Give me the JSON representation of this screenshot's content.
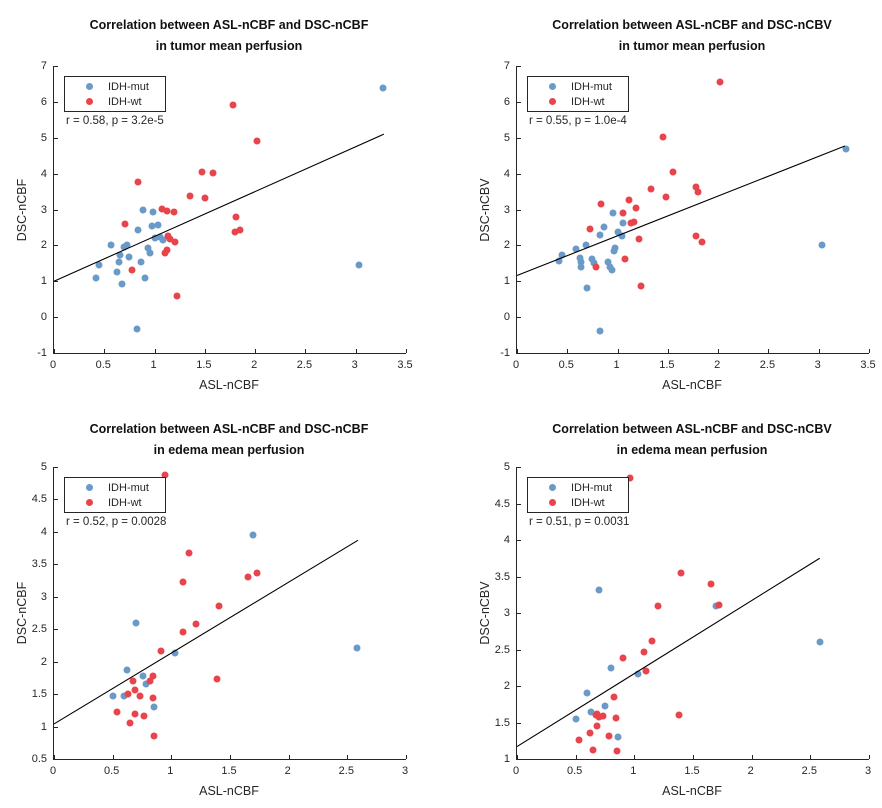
{
  "figure": {
    "background": "#ffffff",
    "layout": "2x2 scatter plot grid"
  },
  "colors": {
    "idh_mut": "#6A9AC8",
    "idh_wt": "#E8444C",
    "axis": "#262626",
    "fit_line": "#000000"
  },
  "chart_data": [
    {
      "type": "scatter",
      "title_line1": "Correlation between ASL-nCBF and DSC-nCBF",
      "title_line2": "in tumor mean perfusion",
      "xlabel": "ASL-nCBF",
      "ylabel": "DSC-nCBF",
      "xlim": [
        0,
        3.5
      ],
      "ylim": [
        -1,
        7
      ],
      "xticks": [
        0,
        0.5,
        1,
        1.5,
        2,
        2.5,
        3,
        3.5
      ],
      "xtick_labels": [
        "0",
        "0.5",
        "1",
        "1.5",
        "2",
        "2.5",
        "3",
        "3.5"
      ],
      "yticks": [
        -1,
        0,
        1,
        2,
        3,
        4,
        5,
        6,
        7
      ],
      "ytick_labels": [
        "-1",
        "0",
        "1",
        "2",
        "3",
        "4",
        "5",
        "6",
        "7"
      ],
      "grid": false,
      "legend_position": "top-left",
      "stats": "r = 0.58, p = 3.2e-5",
      "series": [
        {
          "name": "IDH-mut",
          "color": "#6A9AC8",
          "points": [
            [
              0.42,
              1.1
            ],
            [
              0.45,
              1.45
            ],
            [
              0.57,
              2.0
            ],
            [
              0.63,
              1.25
            ],
            [
              0.65,
              1.55
            ],
            [
              0.66,
              1.72
            ],
            [
              0.68,
              0.92
            ],
            [
              0.7,
              1.95
            ],
            [
              0.73,
              2.02
            ],
            [
              0.75,
              1.68
            ],
            [
              0.84,
              2.43
            ],
            [
              0.83,
              -0.33
            ],
            [
              0.88,
              3.0
            ],
            [
              0.87,
              1.55
            ],
            [
              0.9,
              1.1
            ],
            [
              0.98,
              2.94
            ],
            [
              0.93,
              1.93
            ],
            [
              0.95,
              1.78
            ],
            [
              0.97,
              2.55
            ],
            [
              1.0,
              2.2
            ],
            [
              1.03,
              2.57
            ],
            [
              1.05,
              2.23
            ],
            [
              1.08,
              2.15
            ],
            [
              3.03,
              1.45
            ],
            [
              3.27,
              6.4
            ]
          ]
        },
        {
          "name": "IDH-wt",
          "color": "#E8444C",
          "points": [
            [
              0.71,
              2.6
            ],
            [
              0.78,
              1.3
            ],
            [
              0.84,
              3.76
            ],
            [
              1.07,
              3.02
            ],
            [
              1.12,
              2.95
            ],
            [
              1.1,
              1.8
            ],
            [
              1.12,
              1.88
            ],
            [
              1.13,
              2.25
            ],
            [
              1.15,
              2.18
            ],
            [
              1.19,
              2.92
            ],
            [
              1.2,
              2.1
            ],
            [
              1.22,
              0.6
            ],
            [
              1.35,
              3.39
            ],
            [
              1.47,
              4.04
            ],
            [
              1.5,
              3.31
            ],
            [
              1.58,
              4.01
            ],
            [
              1.78,
              5.9
            ],
            [
              1.8,
              2.38
            ],
            [
              1.81,
              2.79
            ],
            [
              1.85,
              2.43
            ],
            [
              2.02,
              4.92
            ]
          ]
        }
      ],
      "fit_line": {
        "x": [
          0,
          3.28
        ],
        "y": [
          1.0,
          5.1
        ]
      }
    },
    {
      "type": "scatter",
      "title_line1": "Correlation between ASL-nCBF and DSC-nCBV",
      "title_line2": "in tumor mean perfusion",
      "xlabel": "ASL-nCBF",
      "ylabel": "DSC-nCBV",
      "xlim": [
        0,
        3.5
      ],
      "ylim": [
        -1,
        7
      ],
      "xticks": [
        0,
        0.5,
        1,
        1.5,
        2,
        2.5,
        3,
        3.5
      ],
      "xtick_labels": [
        "0",
        "0.5",
        "1",
        "1.5",
        "2",
        "2.5",
        "3",
        "3.5"
      ],
      "yticks": [
        -1,
        0,
        1,
        2,
        3,
        4,
        5,
        6,
        7
      ],
      "ytick_labels": [
        "-1",
        "0",
        "1",
        "2",
        "3",
        "4",
        "5",
        "6",
        "7"
      ],
      "grid": false,
      "legend_position": "top-left",
      "stats": "r = 0.55, p = 1.0e-4",
      "series": [
        {
          "name": "IDH-mut",
          "color": "#6A9AC8",
          "points": [
            [
              0.42,
              1.57
            ],
            [
              0.45,
              1.74
            ],
            [
              0.59,
              1.9
            ],
            [
              0.63,
              1.65
            ],
            [
              0.64,
              1.55
            ],
            [
              0.64,
              1.41
            ],
            [
              0.69,
              2.0
            ],
            [
              0.7,
              0.8
            ],
            [
              0.75,
              1.62
            ],
            [
              0.77,
              1.5
            ],
            [
              0.83,
              2.28
            ],
            [
              0.83,
              -0.4
            ],
            [
              0.87,
              2.5
            ],
            [
              0.9,
              1.53
            ],
            [
              0.92,
              1.4
            ],
            [
              0.94,
              1.32
            ],
            [
              0.95,
              2.9
            ],
            [
              0.96,
              1.85
            ],
            [
              0.97,
              1.94
            ],
            [
              1.0,
              2.38
            ],
            [
              1.04,
              2.27
            ],
            [
              1.05,
              2.62
            ],
            [
              3.03,
              2.0
            ],
            [
              3.27,
              4.68
            ]
          ]
        },
        {
          "name": "IDH-wt",
          "color": "#E8444C",
          "points": [
            [
              0.73,
              2.46
            ],
            [
              0.79,
              1.4
            ],
            [
              0.84,
              3.15
            ],
            [
              1.05,
              2.9
            ],
            [
              1.07,
              1.63
            ],
            [
              1.11,
              3.27
            ],
            [
              1.13,
              2.63
            ],
            [
              1.16,
              2.66
            ],
            [
              1.18,
              3.05
            ],
            [
              1.21,
              2.19
            ],
            [
              1.23,
              0.86
            ],
            [
              1.33,
              3.58
            ],
            [
              1.45,
              5.02
            ],
            [
              1.48,
              3.34
            ],
            [
              1.55,
              4.04
            ],
            [
              1.78,
              3.62
            ],
            [
              1.8,
              3.5
            ],
            [
              1.78,
              2.26
            ],
            [
              1.84,
              2.1
            ],
            [
              2.02,
              6.55
            ]
          ]
        }
      ],
      "fit_line": {
        "x": [
          0,
          3.26
        ],
        "y": [
          1.16,
          4.77
        ]
      }
    },
    {
      "type": "scatter",
      "title_line1": "Correlation between ASL-nCBF and DSC-nCBF",
      "title_line2": "in edema mean perfusion",
      "xlabel": "ASL-nCBF",
      "ylabel": "DSC-nCBF",
      "xlim": [
        0,
        3
      ],
      "ylim": [
        0.5,
        5
      ],
      "xticks": [
        0,
        0.5,
        1,
        1.5,
        2,
        2.5,
        3
      ],
      "xtick_labels": [
        "0",
        "0.5",
        "1",
        "1.5",
        "2",
        "2.5",
        "3"
      ],
      "yticks": [
        0.5,
        1,
        1.5,
        2,
        2.5,
        3,
        3.5,
        4,
        4.5,
        5
      ],
      "ytick_labels": [
        "0.5",
        "1",
        "1.5",
        "2",
        "2.5",
        "3",
        "3.5",
        "4",
        "4.5",
        "5"
      ],
      "grid": false,
      "legend_position": "top-left",
      "stats": "r = 0.52, p = 0.0028",
      "series": [
        {
          "name": "IDH-mut",
          "color": "#6A9AC8",
          "points": [
            [
              0.5,
              1.47
            ],
            [
              0.6,
              1.47
            ],
            [
              0.62,
              1.87
            ],
            [
              0.7,
              2.6
            ],
            [
              0.76,
              1.78
            ],
            [
              0.78,
              1.65
            ],
            [
              0.85,
              1.3
            ],
            [
              1.03,
              2.14
            ],
            [
              1.7,
              3.95
            ],
            [
              2.58,
              2.21
            ]
          ]
        },
        {
          "name": "IDH-wt",
          "color": "#E8444C",
          "points": [
            [
              0.54,
              1.22
            ],
            [
              0.63,
              1.5
            ],
            [
              0.65,
              1.06
            ],
            [
              0.67,
              1.7
            ],
            [
              0.69,
              1.57
            ],
            [
              0.69,
              1.19
            ],
            [
              0.73,
              1.47
            ],
            [
              0.77,
              1.16
            ],
            [
              0.82,
              1.7
            ],
            [
              0.84,
              1.78
            ],
            [
              0.84,
              1.44
            ],
            [
              0.85,
              0.85
            ],
            [
              0.91,
              2.17
            ],
            [
              0.95,
              4.87
            ],
            [
              1.1,
              2.46
            ],
            [
              1.1,
              3.23
            ],
            [
              1.15,
              3.67
            ],
            [
              1.21,
              2.58
            ],
            [
              1.39,
              1.73
            ],
            [
              1.41,
              2.86
            ],
            [
              1.65,
              3.3
            ],
            [
              1.73,
              3.36
            ]
          ]
        }
      ],
      "fit_line": {
        "x": [
          0,
          2.59
        ],
        "y": [
          1.04,
          3.87
        ]
      }
    },
    {
      "type": "scatter",
      "title_line1": "Correlation between ASL-nCBF and DSC-nCBV",
      "title_line2": "in edema mean perfusion",
      "xlabel": "ASL-nCBF",
      "ylabel": "DSC-nCBV",
      "xlim": [
        0,
        3
      ],
      "ylim": [
        1,
        5
      ],
      "xticks": [
        0,
        0.5,
        1,
        1.5,
        2,
        2.5,
        3
      ],
      "xtick_labels": [
        "0",
        "0.5",
        "1",
        "1.5",
        "2",
        "2.5",
        "3"
      ],
      "yticks": [
        1,
        1.5,
        2,
        2.5,
        3,
        3.5,
        4,
        4.5,
        5
      ],
      "ytick_labels": [
        "1",
        "1.5",
        "2",
        "2.5",
        "3",
        "3.5",
        "4",
        "4.5",
        "5"
      ],
      "grid": false,
      "legend_position": "top-left",
      "stats": "r = 0.51, p = 0.0031",
      "series": [
        {
          "name": "IDH-mut",
          "color": "#6A9AC8",
          "points": [
            [
              0.5,
              1.55
            ],
            [
              0.6,
              1.91
            ],
            [
              0.63,
              1.64
            ],
            [
              0.7,
              3.32
            ],
            [
              0.75,
              1.73
            ],
            [
              0.8,
              2.24
            ],
            [
              0.86,
              1.3
            ],
            [
              1.03,
              2.17
            ],
            [
              1.7,
              3.09
            ],
            [
              2.58,
              2.6
            ]
          ]
        },
        {
          "name": "IDH-wt",
          "color": "#E8444C",
          "points": [
            [
              0.53,
              1.26
            ],
            [
              0.62,
              1.35
            ],
            [
              0.65,
              1.13
            ],
            [
              0.67,
              1.6
            ],
            [
              0.68,
              1.62
            ],
            [
              0.68,
              1.45
            ],
            [
              0.7,
              1.58
            ],
            [
              0.73,
              1.59
            ],
            [
              0.78,
              1.31
            ],
            [
              0.83,
              1.85
            ],
            [
              0.84,
              1.56
            ],
            [
              0.85,
              1.11
            ],
            [
              0.9,
              2.39
            ],
            [
              0.96,
              4.85
            ],
            [
              1.08,
              2.47
            ],
            [
              1.1,
              2.21
            ],
            [
              1.15,
              2.62
            ],
            [
              1.2,
              3.09
            ],
            [
              1.38,
              1.6
            ],
            [
              1.4,
              3.55
            ],
            [
              1.65,
              3.4
            ],
            [
              1.72,
              3.11
            ]
          ]
        }
      ],
      "fit_line": {
        "x": [
          0,
          2.58
        ],
        "y": [
          1.17,
          3.75
        ]
      }
    }
  ]
}
